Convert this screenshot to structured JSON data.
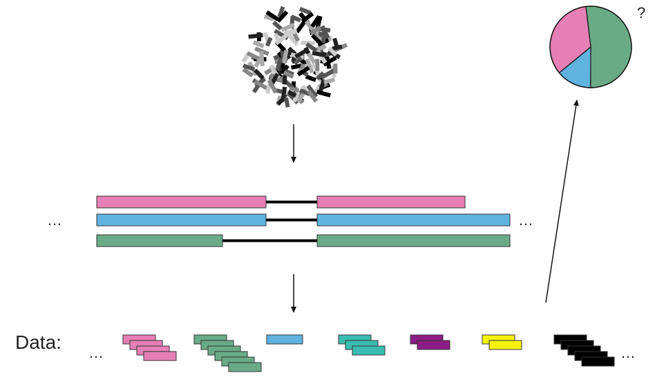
{
  "labels": {
    "data_label": "Data:",
    "question_mark": "?",
    "ellipsis": "…"
  },
  "colors": {
    "pink": "#e57fb5",
    "blue": "#5fb3de",
    "green": "#6aab87",
    "teal": "#3bbcb0",
    "purple": "#8b1d84",
    "yellow": "#f6f20c",
    "black": "#000000",
    "outline": "#333333"
  },
  "pie": {
    "slices": [
      {
        "color_key": "green",
        "fraction": 0.52
      },
      {
        "color_key": "blue",
        "fraction": 0.14
      },
      {
        "color_key": "pink",
        "fraction": 0.34
      }
    ]
  },
  "haplotypes": [
    {
      "color_key": "pink"
    },
    {
      "color_key": "blue"
    },
    {
      "color_key": "green"
    }
  ],
  "read_stacks": [
    {
      "color_key": "pink",
      "count": 4
    },
    {
      "color_key": "green",
      "count": 6
    },
    {
      "color_key": "blue",
      "count": 1
    },
    {
      "color_key": "teal",
      "count": 3
    },
    {
      "color_key": "purple",
      "count": 2
    },
    {
      "color_key": "yellow",
      "count": 2
    },
    {
      "color_key": "black",
      "count": 5
    }
  ]
}
